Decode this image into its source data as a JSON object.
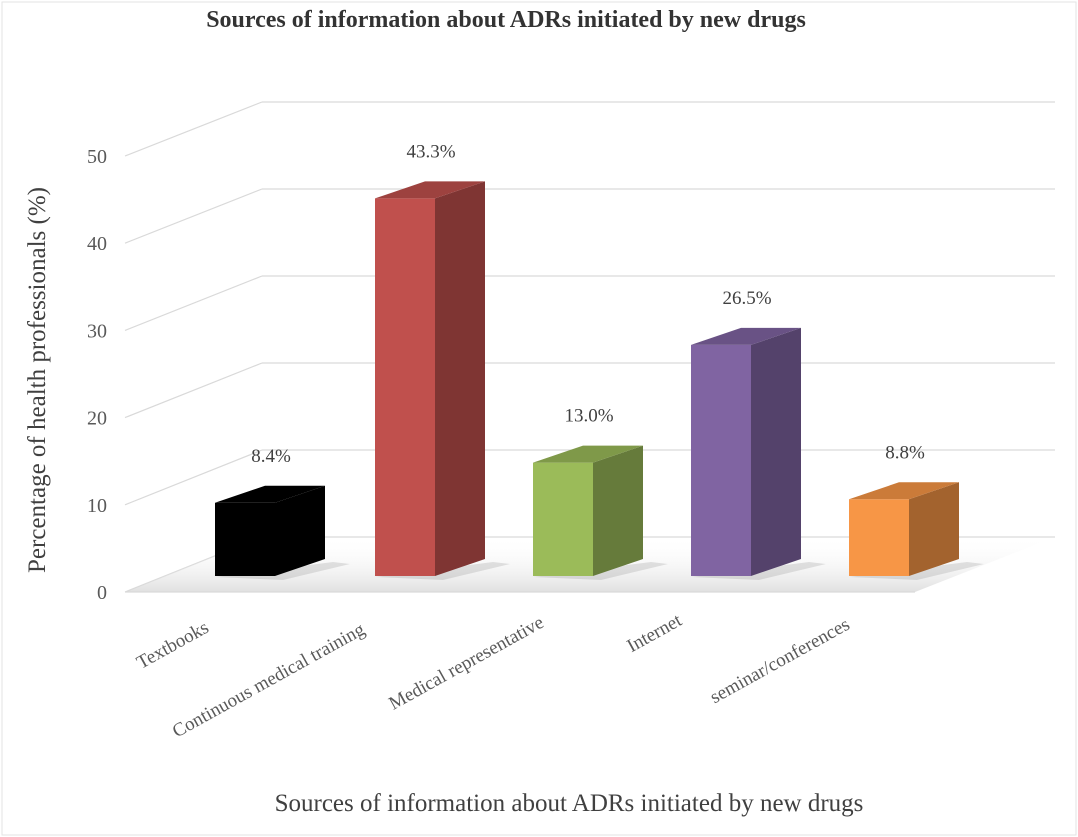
{
  "chart_data": {
    "type": "bar",
    "title": "Sources of information about ADRs initiated by new drugs",
    "xlabel": "Sources of information about ADRs initiated by new drugs",
    "ylabel": "Percentage of health professionals  (%)",
    "categories": [
      "Textbooks",
      "Continuous medical training",
      "Medical representative",
      "Internet",
      "seminar/conferences"
    ],
    "values": [
      8.4,
      43.3,
      13.0,
      26.5,
      8.8
    ],
    "data_labels": [
      "8.4%",
      "43.3%",
      "13.0%",
      "26.5%",
      "8.8%"
    ],
    "yticks": [
      "0",
      "10",
      "20",
      "30",
      "40",
      "50"
    ],
    "ylim": [
      0,
      50
    ],
    "grid": true,
    "legend": "none",
    "three_d": true,
    "colors": [
      "#000000",
      "#c0504d",
      "#9bbb59",
      "#8064a2",
      "#f79646"
    ]
  }
}
